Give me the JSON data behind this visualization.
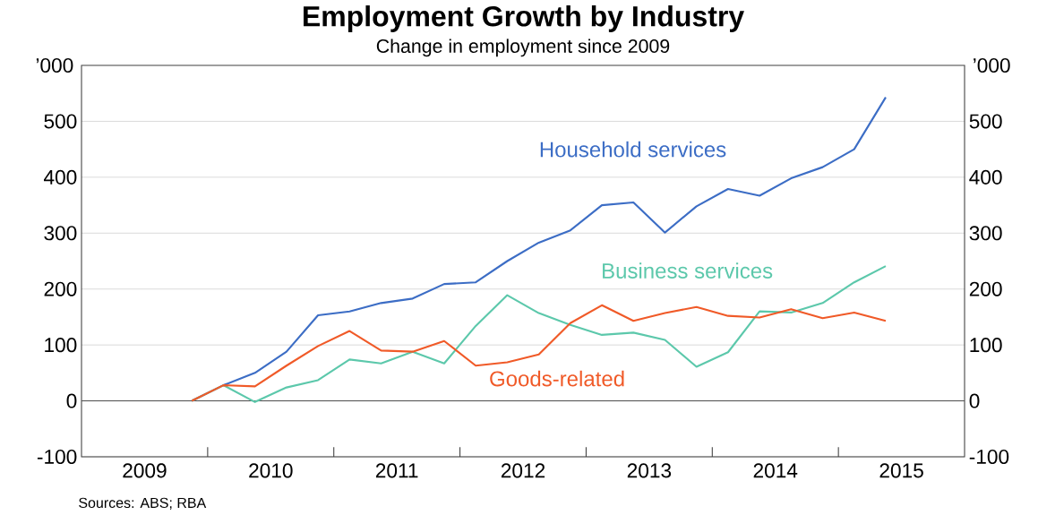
{
  "chart_data": {
    "type": "line",
    "title": "Employment Growth by Industry",
    "subtitle": "Change in employment since 2009",
    "x": [
      2009.875,
      2010.125,
      2010.375,
      2010.625,
      2010.875,
      2011.125,
      2011.375,
      2011.625,
      2011.875,
      2012.125,
      2012.375,
      2012.625,
      2012.875,
      2013.125,
      2013.375,
      2013.625,
      2013.875,
      2014.125,
      2014.375,
      2014.625,
      2014.875,
      2015.125,
      2015.375
    ],
    "series": [
      {
        "name": "Household services",
        "color": "#3c6dc5",
        "values": [
          0,
          28,
          50,
          88,
          153,
          160,
          175,
          183,
          209,
          212,
          250,
          283,
          305,
          350,
          355,
          301,
          348,
          379,
          367,
          398,
          418,
          450,
          543
        ]
      },
      {
        "name": "Business services",
        "color": "#5cc8ab",
        "values": [
          0,
          28,
          -2,
          24,
          37,
          74,
          67,
          88,
          67,
          134,
          189,
          157,
          136,
          118,
          122,
          109,
          61,
          87,
          160,
          158,
          175,
          212,
          241
        ]
      },
      {
        "name": "Goods-related",
        "color": "#f05a28",
        "values": [
          0,
          28,
          26,
          63,
          98,
          125,
          90,
          88,
          107,
          63,
          69,
          83,
          139,
          171,
          143,
          157,
          168,
          152,
          149,
          164,
          148,
          158,
          143
        ]
      }
    ],
    "xlim": [
      2009,
      2016
    ],
    "xticks": [
      {
        "value": 2009.5,
        "label": "2009"
      },
      {
        "value": 2010,
        "label": null
      },
      {
        "value": 2010.5,
        "label": "2010"
      },
      {
        "value": 2011,
        "label": null
      },
      {
        "value": 2011.5,
        "label": "2011"
      },
      {
        "value": 2012,
        "label": null
      },
      {
        "value": 2012.5,
        "label": "2012"
      },
      {
        "value": 2013,
        "label": null
      },
      {
        "value": 2013.5,
        "label": "2013"
      },
      {
        "value": 2014,
        "label": null
      },
      {
        "value": 2014.5,
        "label": "2014"
      },
      {
        "value": 2015,
        "label": null
      },
      {
        "value": 2015.5,
        "label": "2015"
      }
    ],
    "ylim": [
      -100,
      600
    ],
    "yticks": [
      -100,
      0,
      100,
      200,
      300,
      400,
      500
    ],
    "ylabel": "’000",
    "y2label": "’000",
    "y2lim": [
      -100,
      600
    ],
    "y2ticks": [
      -100,
      0,
      100,
      200,
      300,
      400,
      500
    ],
    "grid": "y",
    "ref_lines": [
      {
        "axis": "y",
        "value": 0,
        "color": "#555555"
      }
    ],
    "annotations": [
      "Sources:  ABS; RBA"
    ]
  }
}
